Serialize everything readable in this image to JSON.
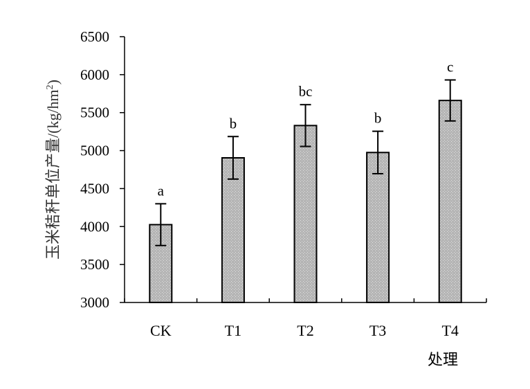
{
  "chart_data": {
    "type": "bar",
    "categories": [
      "CK",
      "T1",
      "T2",
      "T3",
      "T4"
    ],
    "values": [
      4025,
      4905,
      5330,
      4975,
      5660
    ],
    "errors": [
      275,
      280,
      275,
      280,
      270
    ],
    "significance": [
      "a",
      "b",
      "bc",
      "b",
      "c"
    ],
    "title": "",
    "xlabel": "处理",
    "ylabel_main": "玉米秸秆单位产量/(kg/hm",
    "ylabel_sup": "2",
    "ylabel_tail": ")",
    "ylim": [
      3000,
      6500
    ],
    "yticks": [
      3000,
      3500,
      4000,
      4500,
      5000,
      5500,
      6000,
      6500
    ],
    "ytick_labels": [
      "3000",
      "3500",
      "4000",
      "4500",
      "5000",
      "5500",
      "6000",
      "6500"
    ],
    "grid": false,
    "legend": "none",
    "bar_fill": "#b8b8b8",
    "bar_pattern": "dotted-hatch",
    "line_color": "#000000"
  }
}
